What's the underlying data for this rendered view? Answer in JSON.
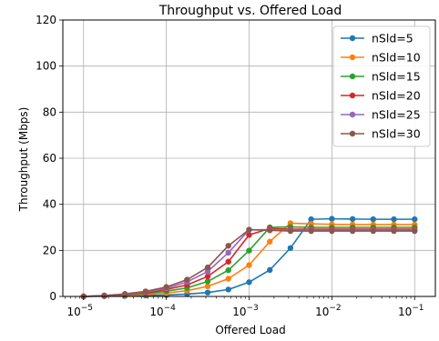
{
  "chart_data": {
    "type": "line",
    "title": "Throughput vs. Offered Load",
    "xlabel": "Offered Load",
    "ylabel": "Throughput (Mbps)",
    "xscale": "log",
    "xlim": [
      5.62e-06,
      0.178
    ],
    "ylim": [
      0,
      120
    ],
    "xticks": [
      1e-05,
      0.0001,
      0.001,
      0.01,
      0.1
    ],
    "xtick_labels": [
      {
        "base": "10",
        "exp": "−5"
      },
      {
        "base": "10",
        "exp": "−4"
      },
      {
        "base": "10",
        "exp": "−3"
      },
      {
        "base": "10",
        "exp": "−2"
      },
      {
        "base": "10",
        "exp": "−1"
      }
    ],
    "yticks": [
      0,
      20,
      40,
      60,
      80,
      100,
      120
    ],
    "ytick_labels": [
      "0",
      "20",
      "40",
      "60",
      "80",
      "100",
      "120"
    ],
    "grid": true,
    "legend_position": "top-right",
    "x": [
      1e-05,
      1.78e-05,
      3.16e-05,
      5.62e-05,
      0.0001,
      0.000178,
      0.000316,
      0.000562,
      0.001,
      0.00178,
      0.00316,
      0.00562,
      0.01,
      0.0178,
      0.0316,
      0.0562,
      0.1
    ],
    "series": [
      {
        "name": "nSld=5",
        "color": "#1f77b4",
        "values": [
          0.0,
          0.1,
          0.2,
          0.4,
          0.6,
          1.0,
          1.7,
          3.0,
          6.2,
          11.5,
          21.0,
          33.5,
          33.7,
          33.6,
          33.5,
          33.5,
          33.5
        ]
      },
      {
        "name": "nSld=10",
        "color": "#ff7f0e",
        "values": [
          0.0,
          0.2,
          0.4,
          0.8,
          1.5,
          2.5,
          4.4,
          7.7,
          13.6,
          23.8,
          31.8,
          31.5,
          31.3,
          31.2,
          31.2,
          31.2,
          31.2
        ]
      },
      {
        "name": "nSld=15",
        "color": "#2ca02c",
        "values": [
          0.0,
          0.3,
          0.6,
          1.2,
          2.3,
          3.7,
          6.5,
          11.4,
          19.9,
          30.0,
          30.2,
          30.0,
          30.0,
          30.0,
          30.0,
          30.0,
          30.0
        ]
      },
      {
        "name": "nSld=20",
        "color": "#d62728",
        "values": [
          0.0,
          0.3,
          0.8,
          1.5,
          3.0,
          5.0,
          8.7,
          15.1,
          26.7,
          29.5,
          29.2,
          29.2,
          29.2,
          29.2,
          29.2,
          29.2,
          29.2
        ]
      },
      {
        "name": "nSld=25",
        "color": "#9467bd",
        "values": [
          0.0,
          0.4,
          0.9,
          1.9,
          3.5,
          6.3,
          10.8,
          19.0,
          28.9,
          29.0,
          28.8,
          28.8,
          28.8,
          28.8,
          28.8,
          28.8,
          28.8
        ]
      },
      {
        "name": "nSld=30",
        "color": "#8c564b",
        "values": [
          0.0,
          0.4,
          1.1,
          2.2,
          4.1,
          7.3,
          12.6,
          22.0,
          29.0,
          28.7,
          28.4,
          28.4,
          28.4,
          28.4,
          28.4,
          28.4,
          28.4
        ]
      }
    ]
  }
}
